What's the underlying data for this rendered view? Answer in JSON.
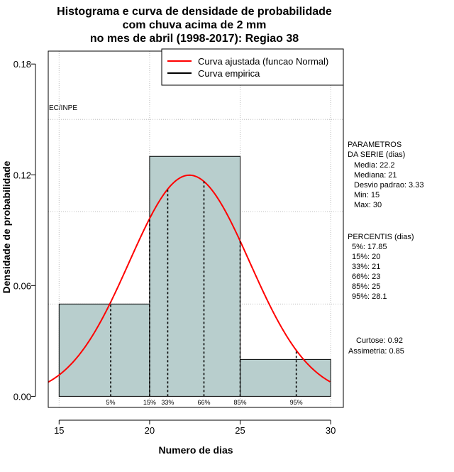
{
  "chart_data": {
    "type": "bar",
    "title": [
      "Histograma e curva de densidade de probabilidade",
      "com chuva acima de 2 mm",
      "no mes de abril (1998-2017): Regiao 38"
    ],
    "xlabel": "Numero de dias",
    "ylabel": "Densidade de probabilidade",
    "xlim": [
      14.4,
      30.7
    ],
    "ylim": [
      -0.006,
      0.187
    ],
    "xticks": [
      "15",
      "20",
      "25",
      "30"
    ],
    "yticks": [
      "0.00",
      "0.06",
      "0.12",
      "0.18"
    ],
    "bins": [
      {
        "x0": 15,
        "x1": 20,
        "density": 0.05
      },
      {
        "x0": 20,
        "x1": 25,
        "density": 0.13
      },
      {
        "x0": 25,
        "x1": 30,
        "density": 0.02
      }
    ],
    "grid": true,
    "grid_y": [
      0.05,
      0.1,
      0.15
    ],
    "bar_color": "#b8cecd",
    "curve_color": "#ff0000",
    "curve": {
      "name": "Curva ajustada (funcao Normal)",
      "distribution": "normal",
      "mean": 22.2,
      "sd": 3.33
    },
    "legend": {
      "position": "top-right",
      "entries": [
        {
          "label": "Curva ajustada (funcao Normal)",
          "color": "#ff0000"
        },
        {
          "label": "Curva empirica",
          "color": "#000000"
        }
      ]
    },
    "watermark": "EC/INPE",
    "percentile_lines": [
      {
        "label": "5%",
        "x": 17.85
      },
      {
        "label": "15%",
        "x": 20
      },
      {
        "label": "33%",
        "x": 21
      },
      {
        "label": "66%",
        "x": 23
      },
      {
        "label": "85%",
        "x": 25
      },
      {
        "label": "95%",
        "x": 28.1
      }
    ],
    "side_panel": {
      "params_title": [
        "PARAMETROS",
        "DA SERIE (dias)"
      ],
      "params": [
        "Media: 22.2",
        "Mediana: 21",
        "Desvio padrao: 3.33",
        "Min: 15",
        "Max: 30"
      ],
      "percentis_title": "PERCENTIS (dias)",
      "percentis": [
        "5%: 17.85",
        "15%: 20",
        "33%: 21",
        "66%: 23",
        "85%: 25",
        "95%: 28.1"
      ],
      "shape": [
        "Curtose: 0.92",
        "Assimetria: 0.85"
      ]
    }
  }
}
